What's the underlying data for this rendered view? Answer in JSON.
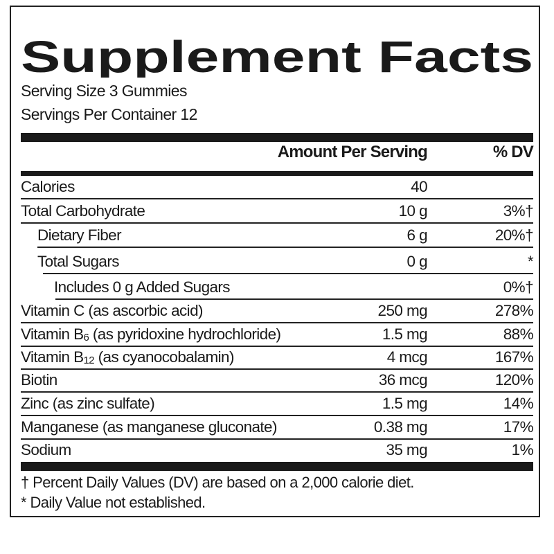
{
  "title": "Supplement Facts",
  "serving_size": "Serving Size 3 Gummies",
  "servings_per_container": "Servings Per Container 12",
  "header": {
    "amount": "Amount Per Serving",
    "dv": "% DV"
  },
  "rows": [
    {
      "label": "Calories",
      "amount": "40",
      "dv": ""
    },
    {
      "label": "Total Carbohydrate",
      "amount": "10 g",
      "dv": "3%†"
    },
    {
      "label": "Dietary Fiber",
      "amount": "6 g",
      "dv": "20%†"
    },
    {
      "label": "Total Sugars",
      "amount": "0 g",
      "dv": "*"
    },
    {
      "label": "Includes 0 g Added Sugars",
      "amount": "",
      "dv": "0%†"
    },
    {
      "label": "Vitamin C (as ascorbic acid)",
      "amount": "250 mg",
      "dv": "278%"
    },
    {
      "label": "Vitamin B",
      "sub": "6",
      "label_rest": " (as pyridoxine hydrochloride)",
      "amount": "1.5 mg",
      "dv": "88%"
    },
    {
      "label": "Vitamin B",
      "sub": "12",
      "label_rest": " (as cyanocobalamin)",
      "amount": "4 mcg",
      "dv": "167%"
    },
    {
      "label": "Biotin",
      "amount": "36 mcg",
      "dv": "120%"
    },
    {
      "label": "Zinc (as zinc sulfate)",
      "amount": "1.5 mg",
      "dv": "14%"
    },
    {
      "label": "Manganese (as manganese gluconate)",
      "amount": "0.38 mg",
      "dv": "17%"
    },
    {
      "label": "Sodium",
      "amount": "35 mg",
      "dv": "1%"
    }
  ],
  "footnotes": [
    "† Percent Daily Values (DV) are based on a 2,000 calorie diet.",
    "* Daily Value not established."
  ]
}
